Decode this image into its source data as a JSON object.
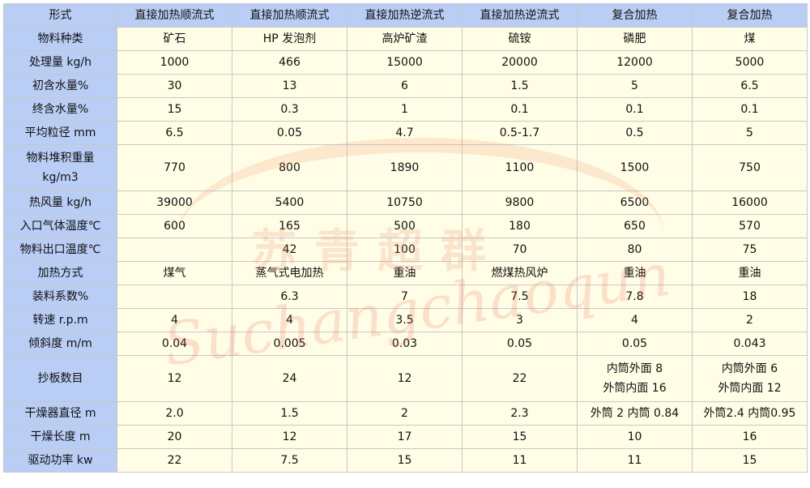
{
  "header": [
    "形式",
    "直接加热顺流式",
    "直接加热顺流式",
    "直接加热逆流式",
    "直接加热逆流式",
    "复合加热",
    "复合加热"
  ],
  "rows": [
    [
      "物料种类",
      "矿石",
      "HP 发泡剂",
      "高炉矿渣",
      "硫铵",
      "磷肥",
      "煤"
    ],
    [
      "处理量 kg/h",
      "1000",
      "466",
      "15000",
      "20000",
      "12000",
      "5000"
    ],
    [
      "初含水量%",
      "30",
      "13",
      "6",
      "1.5",
      "5",
      "6.5"
    ],
    [
      "终含水量%",
      "15",
      "0.3",
      "1",
      "0.1",
      "0.1",
      "0.1"
    ],
    [
      "平均粒径 mm",
      "6.5",
      "0.05",
      "4.7",
      "0.5-1.7",
      "0.5",
      "5"
    ],
    [
      "物料堆积重量\nkg/m3",
      "770",
      "800",
      "1890",
      "1100",
      "1500",
      "750"
    ],
    [
      "热风量 kg/h",
      "39000",
      "5400",
      "10750",
      "9800",
      "6500",
      "16000"
    ],
    [
      "入口气体温度℃",
      "600",
      "165",
      "500",
      "180",
      "650",
      "570"
    ],
    [
      "物料出口温度℃",
      "",
      "42",
      "100",
      "70",
      "80",
      "75"
    ],
    [
      "加热方式",
      "煤气",
      "蒸气式电加热",
      "重油",
      "燃煤热风炉",
      "重油",
      "重油"
    ],
    [
      "装料系数%",
      "",
      "6.3",
      "7",
      "7.5",
      "7.8",
      "18"
    ],
    [
      "转速 r.p.m",
      "4",
      "4",
      "3.5",
      "3",
      "4",
      "2"
    ],
    [
      "倾斜度 m/m",
      "0.04",
      "0.005",
      "0.03",
      "0.05",
      "0.05",
      "0.043"
    ],
    [
      "抄板数目",
      "12",
      "24",
      "12",
      "22",
      "内筒外面 8\n外筒内面 16",
      "内筒外面 6\n外筒内面 12"
    ],
    [
      "干燥器直径 m",
      "2.0",
      "1.5",
      "2",
      "2.3",
      "外筒 2  内筒 0.84",
      "外筒2.4  内筒0.95"
    ],
    [
      "干燥长度 m",
      "20",
      "12",
      "17",
      "15",
      "10",
      "16"
    ],
    [
      "驱动功率 kw",
      "22",
      "7.5",
      "15",
      "11",
      "11",
      "15"
    ]
  ],
  "watermark": {
    "chinese": "苏青超群",
    "latin": "Suchangchaoqun"
  },
  "colors": {
    "header_bg": "#b9cdf5",
    "cell_bg": "#fffde5",
    "border": "#c8c8c8",
    "watermark": "#e68c78"
  }
}
